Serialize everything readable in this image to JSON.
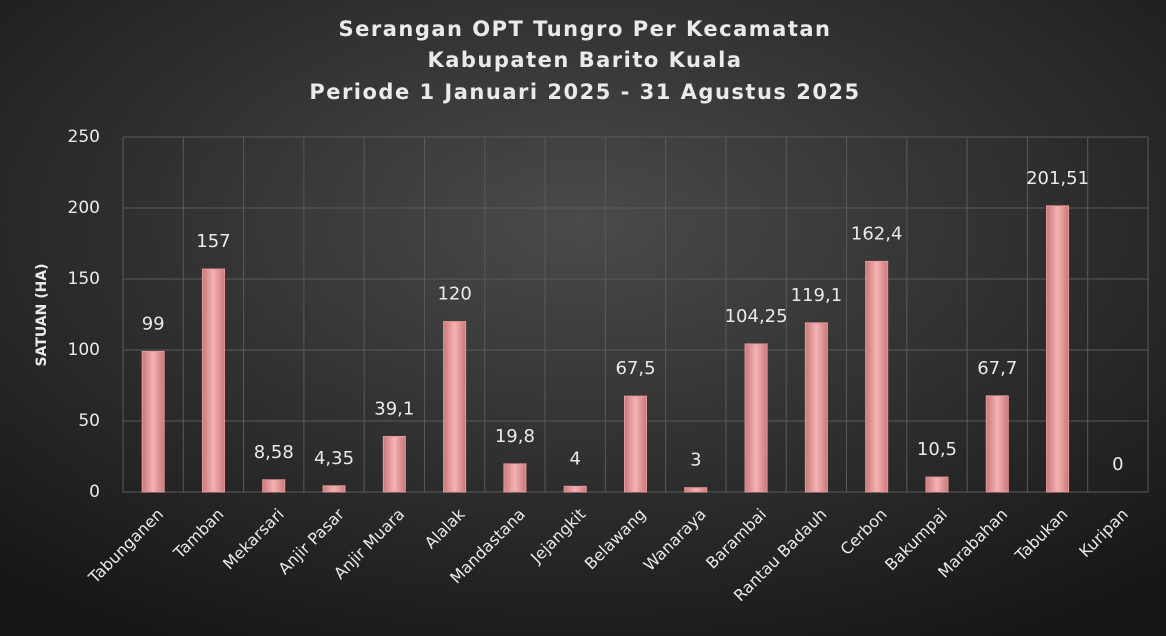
{
  "chart_data": {
    "type": "bar",
    "title": [
      "Serangan OPT Tungro Per Kecamatan",
      "Kabupaten Barito Kuala",
      "Periode 1 Januari 2025 - 31 Agustus 2025"
    ],
    "y_label": "SATUAN (HA)",
    "categories": [
      "Tabunganen",
      "Tamban",
      "Mekarsari",
      "Anjir Pasar",
      "Anjir Muara",
      "Alalak",
      "Mandastana",
      "Jejangkit",
      "Belawang",
      "Wanaraya",
      "Barambai",
      "Rantau Badauh",
      "Cerbon",
      "Bakumpai",
      "Marabahan",
      "Tabukan",
      "Kuripan"
    ],
    "values": [
      99,
      157,
      8.58,
      4.35,
      39.1,
      120,
      19.8,
      4,
      67.5,
      3,
      104.25,
      119.1,
      162.4,
      10.5,
      67.7,
      201.51,
      0
    ],
    "value_labels": [
      "99",
      "157",
      "8,58",
      "4,35",
      "39,1",
      "120",
      "19,8",
      "4",
      "67,5",
      "3",
      "104,25",
      "119,1",
      "162,4",
      "10,5",
      "67,7",
      "201,51",
      "0"
    ],
    "color": "#e89a9a",
    "ylim": [
      0,
      250
    ],
    "yticks": [
      0,
      50,
      100,
      150,
      200,
      250
    ],
    "grid": true
  }
}
